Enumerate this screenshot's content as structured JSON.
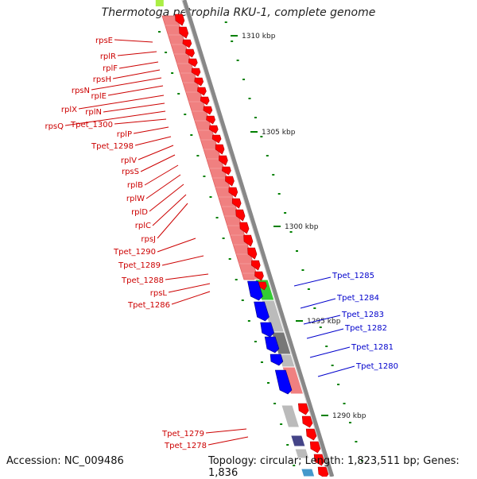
{
  "title": "Thermotoga petrophila RKU-1, complete genome",
  "accession": "Accession: NC_009486",
  "summary": "Topology: circular; Length: 1,823,511 bp; Genes: 1,836",
  "colors": {
    "forward_gene": "#ff0000",
    "reverse_gene": "#0000ff",
    "forward_label": "#cc0000",
    "reverse_label": "#0000cc",
    "backbone": "#888888",
    "tick": "#008000",
    "track_pink": "#f08080",
    "track_green": "#33cc33",
    "track_gray": "#bbbbbb",
    "track_dark": "#777777"
  },
  "scale_ticks": [
    {
      "label": "1310 kbp"
    },
    {
      "label": "1305 kbp"
    },
    {
      "label": "1300 kbp"
    },
    {
      "label": "1295 kbp"
    },
    {
      "label": "1290 kbp"
    }
  ],
  "forward_genes": [
    {
      "label": "rpsE"
    },
    {
      "label": "rplR"
    },
    {
      "label": "rplF"
    },
    {
      "label": "rpsH"
    },
    {
      "label": "rpsN"
    },
    {
      "label": "rplE"
    },
    {
      "label": "rplX"
    },
    {
      "label": "rplN"
    },
    {
      "label": "rpsQ"
    },
    {
      "label": "Tpet_1300"
    },
    {
      "label": "rplP"
    },
    {
      "label": "Tpet_1298"
    },
    {
      "label": "rplV"
    },
    {
      "label": "rpsS"
    },
    {
      "label": "rplB"
    },
    {
      "label": "rplW"
    },
    {
      "label": "rplD"
    },
    {
      "label": "rplC"
    },
    {
      "label": "rpsJ"
    },
    {
      "label": "Tpet_1290"
    },
    {
      "label": "Tpet_1289"
    },
    {
      "label": "Tpet_1288"
    },
    {
      "label": "rpsL"
    },
    {
      "label": "Tpet_1286"
    },
    {
      "label": "Tpet_1279"
    },
    {
      "label": "Tpet_1278"
    }
  ],
  "reverse_genes": [
    {
      "label": "Tpet_1285"
    },
    {
      "label": "Tpet_1284"
    },
    {
      "label": "Tpet_1283"
    },
    {
      "label": "Tpet_1282"
    },
    {
      "label": "Tpet_1281"
    },
    {
      "label": "Tpet_1280"
    }
  ]
}
